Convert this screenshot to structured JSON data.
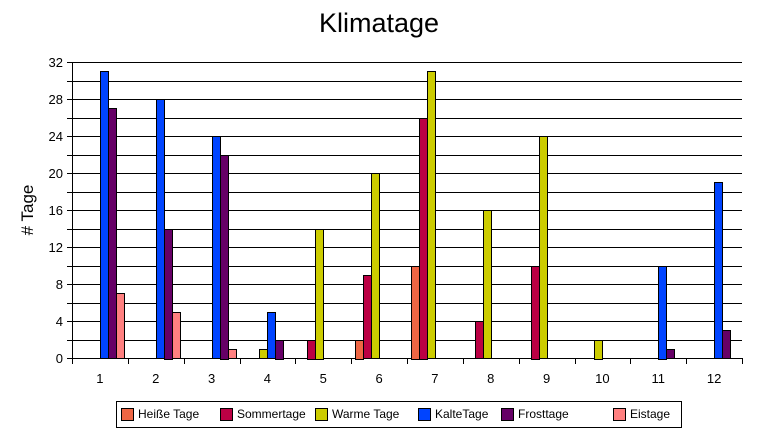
{
  "chart_data": {
    "type": "bar",
    "title": "Klimatage",
    "xlabel": "",
    "ylabel": "# Tage",
    "ylim": [
      0,
      32
    ],
    "yticks": [
      0,
      4,
      8,
      12,
      16,
      20,
      24,
      28,
      32
    ],
    "grid": true,
    "legend_position": "bottom",
    "categories": [
      "1",
      "2",
      "3",
      "4",
      "5",
      "6",
      "7",
      "8",
      "9",
      "10",
      "11",
      "12"
    ],
    "series": [
      {
        "name": "Heiße Tage",
        "color": "#ee6644",
        "values": [
          0,
          0,
          0,
          0,
          0,
          2,
          10,
          0,
          0,
          0,
          0,
          0
        ]
      },
      {
        "name": "Sommertage",
        "color": "#bb0044",
        "values": [
          0,
          0,
          0,
          0,
          2,
          9,
          26,
          4,
          10,
          0,
          0,
          0
        ]
      },
      {
        "name": "Warme Tage",
        "color": "#cccc00",
        "values": [
          0,
          0,
          0,
          1,
          14,
          20,
          31,
          16,
          24,
          2,
          0,
          0
        ]
      },
      {
        "name": "KalteTage",
        "color": "#0044ff",
        "values": [
          31,
          28,
          24,
          5,
          0,
          0,
          0,
          0,
          0,
          0,
          10,
          19
        ]
      },
      {
        "name": "Frosttage",
        "color": "#660066",
        "values": [
          27,
          14,
          22,
          2,
          0,
          0,
          0,
          0,
          0,
          0,
          1,
          3
        ]
      },
      {
        "name": "Eistage",
        "color": "#ff8080",
        "values": [
          7,
          5,
          1,
          0,
          0,
          0,
          0,
          0,
          0,
          0,
          0,
          0
        ]
      }
    ]
  }
}
